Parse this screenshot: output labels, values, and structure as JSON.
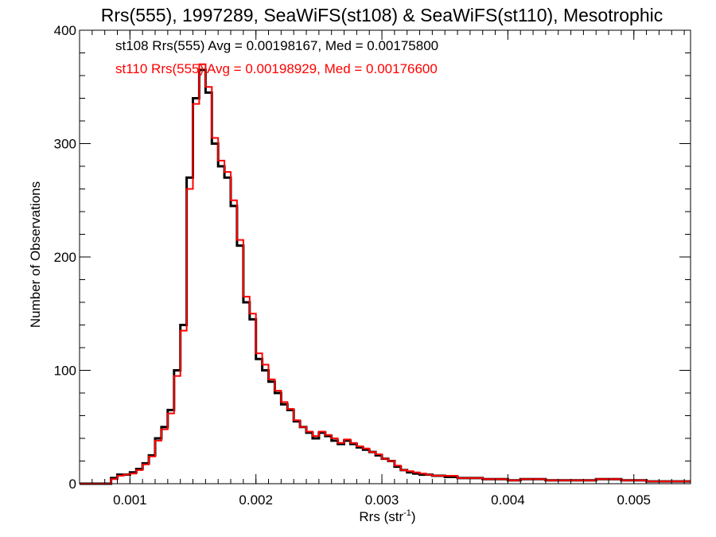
{
  "chart_data": {
    "type": "line",
    "title": "Rrs(555), 1997289, SeaWiFS(st108) & SeaWiFS(st110), Mesotrophic",
    "xlabel": "Rrs (str",
    "xlabel_sup": "-1",
    "xlabel_close": ")",
    "ylabel": "Number of Observations",
    "xlim": [
      0.0006,
      0.00545
    ],
    "ylim": [
      0,
      400
    ],
    "xticks": [
      0.001,
      0.002,
      0.003,
      0.004,
      0.005
    ],
    "xtick_labels": [
      "0.001",
      "0.002",
      "0.003",
      "0.004",
      "0.005"
    ],
    "yticks": [
      0,
      100,
      200,
      300,
      400
    ],
    "ytick_labels": [
      "0",
      "100",
      "200",
      "300",
      "400"
    ],
    "grid": false,
    "legend_position": "top-left",
    "annotations": [
      "st108 Rrs(555) Avg = 0.00198167, Med = 0.00175800",
      "st110 Rrs(555) Avg = 0.00198929, Med = 0.00176600"
    ],
    "series": [
      {
        "color": "#000000",
        "x": [
          0.0006,
          0.0007,
          0.0008,
          0.00085,
          0.0009,
          0.00095,
          0.001,
          0.00105,
          0.0011,
          0.00115,
          0.0012,
          0.00125,
          0.0013,
          0.00135,
          0.0014,
          0.00145,
          0.0015,
          0.00155,
          0.0016,
          0.00165,
          0.0017,
          0.00175,
          0.0018,
          0.00185,
          0.0019,
          0.00195,
          0.002,
          0.00205,
          0.0021,
          0.00215,
          0.0022,
          0.00225,
          0.0023,
          0.00235,
          0.0024,
          0.00245,
          0.0025,
          0.00255,
          0.0026,
          0.00265,
          0.0027,
          0.00275,
          0.0028,
          0.00285,
          0.0029,
          0.00295,
          0.003,
          0.00305,
          0.0031,
          0.00315,
          0.0032,
          0.00325,
          0.0033,
          0.00335,
          0.0034,
          0.0035,
          0.0036,
          0.0037,
          0.0038,
          0.0039,
          0.004,
          0.0041,
          0.0042,
          0.0043,
          0.0044,
          0.0045,
          0.0046,
          0.0047,
          0.0048,
          0.0049,
          0.005,
          0.0051,
          0.0052,
          0.0053,
          0.0054,
          0.00545
        ],
        "y": [
          0,
          0,
          0,
          5,
          8,
          8,
          10,
          13,
          18,
          25,
          40,
          50,
          65,
          100,
          140,
          270,
          340,
          365,
          345,
          300,
          280,
          270,
          245,
          210,
          160,
          145,
          110,
          100,
          90,
          80,
          70,
          65,
          55,
          50,
          45,
          40,
          45,
          42,
          38,
          35,
          38,
          35,
          32,
          30,
          28,
          25,
          22,
          20,
          15,
          12,
          10,
          9,
          8,
          8,
          7,
          6,
          5,
          5,
          4,
          4,
          3,
          4,
          4,
          3,
          3,
          3,
          3,
          4,
          4,
          3,
          3,
          2,
          2,
          2,
          2,
          2
        ]
      },
      {
        "color": "#ff0000",
        "x": [
          0.0006,
          0.0007,
          0.0008,
          0.00085,
          0.0009,
          0.00095,
          0.001,
          0.00105,
          0.0011,
          0.00115,
          0.0012,
          0.00125,
          0.0013,
          0.00135,
          0.0014,
          0.00145,
          0.0015,
          0.00155,
          0.0016,
          0.00165,
          0.0017,
          0.00175,
          0.0018,
          0.00185,
          0.0019,
          0.00195,
          0.002,
          0.00205,
          0.0021,
          0.00215,
          0.0022,
          0.00225,
          0.0023,
          0.00235,
          0.0024,
          0.00245,
          0.0025,
          0.00255,
          0.0026,
          0.00265,
          0.0027,
          0.00275,
          0.0028,
          0.00285,
          0.0029,
          0.00295,
          0.003,
          0.00305,
          0.0031,
          0.00315,
          0.0032,
          0.00325,
          0.0033,
          0.00335,
          0.0034,
          0.0035,
          0.0036,
          0.0037,
          0.0038,
          0.0039,
          0.004,
          0.0041,
          0.0042,
          0.0043,
          0.0044,
          0.0045,
          0.0046,
          0.0047,
          0.0048,
          0.0049,
          0.005,
          0.0051,
          0.0052,
          0.0053,
          0.0054,
          0.00545
        ],
        "y": [
          0,
          0,
          0,
          4,
          7,
          8,
          9,
          12,
          17,
          24,
          38,
          48,
          62,
          95,
          135,
          260,
          335,
          370,
          350,
          305,
          285,
          275,
          250,
          215,
          165,
          150,
          115,
          105,
          92,
          82,
          72,
          66,
          56,
          50,
          46,
          42,
          46,
          43,
          40,
          36,
          39,
          36,
          33,
          31,
          28,
          26,
          22,
          20,
          16,
          12,
          11,
          10,
          9,
          8,
          7,
          7,
          5,
          5,
          4,
          4,
          3,
          4,
          4,
          3,
          3,
          3,
          3,
          4,
          4,
          3,
          3,
          2,
          2,
          2,
          2,
          2
        ]
      }
    ]
  }
}
